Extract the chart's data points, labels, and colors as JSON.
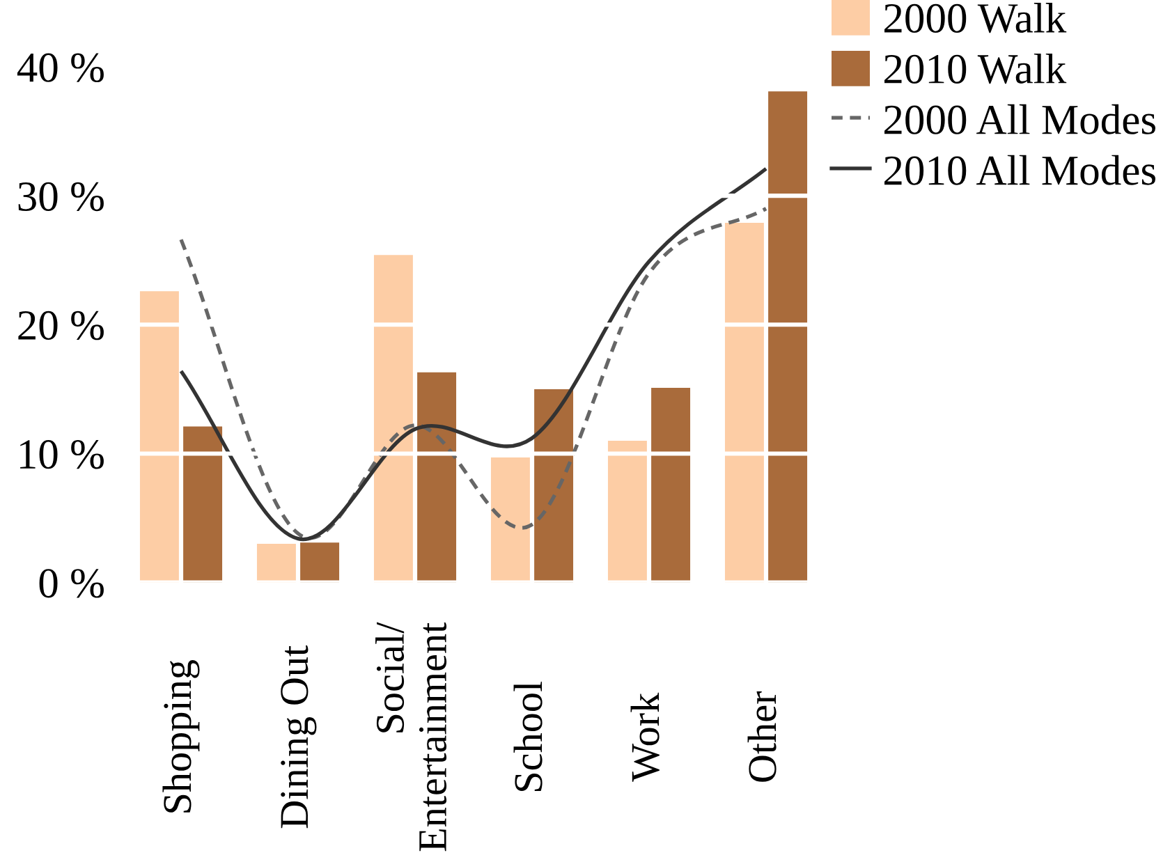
{
  "chart_data": {
    "type": "bar",
    "categories": [
      "Shopping",
      "Dining Out",
      "Social/\nEntertainment",
      "School",
      "Work",
      "Other"
    ],
    "series": [
      {
        "name": "2000 Walk",
        "color": "#fdcda5",
        "values": [
          22.6,
          3.0,
          25.4,
          9.7,
          11.0,
          27.9
        ]
      },
      {
        "name": "2010 Walk",
        "color": "#a96b3b",
        "values": [
          12.1,
          3.1,
          16.3,
          15.0,
          15.1,
          38.1
        ]
      },
      {
        "name": "2000 All Modes",
        "type": "line",
        "color": "#666666",
        "line_style": "dashed",
        "values": [
          26.6,
          3.8,
          12.2,
          4.5,
          24.0,
          29.0
        ]
      },
      {
        "name": "2010 All Modes",
        "type": "line",
        "color": "#333333",
        "line_style": "solid",
        "values": [
          16.4,
          3.4,
          11.9,
          11.2,
          24.9,
          32.1
        ]
      }
    ],
    "ylim": [
      0,
      40
    ],
    "yticks": [
      {
        "value": 0,
        "label": "0 %"
      },
      {
        "value": 10,
        "label": "10 %"
      },
      {
        "value": 20,
        "label": "20 %"
      },
      {
        "value": 30,
        "label": "30 %"
      },
      {
        "value": 40,
        "label": "40 %"
      }
    ],
    "grid": "y",
    "legend": "top right"
  }
}
